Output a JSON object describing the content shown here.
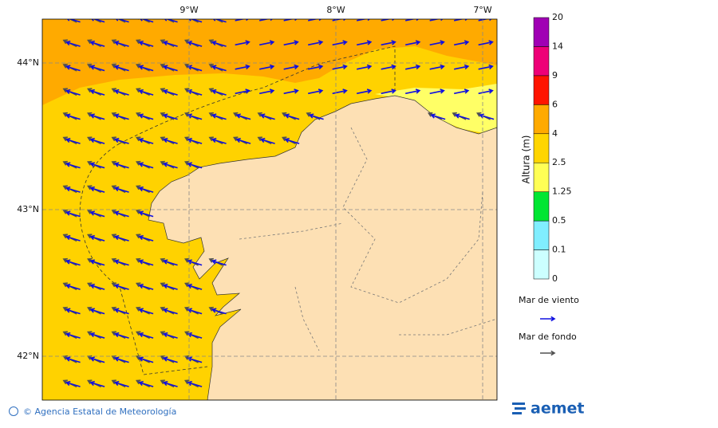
{
  "map": {
    "lon_labels": [
      "9°W",
      "8°W",
      "7°W"
    ],
    "lat_labels": [
      "44°N",
      "43°N",
      "42°N"
    ]
  },
  "colorbar": {
    "label": "Altura (m)",
    "levels": [
      0,
      0.1,
      0.5,
      1.25,
      2.5,
      4,
      6,
      9,
      14,
      20
    ],
    "colors": [
      "#ccffff",
      "#80eeff",
      "#00e632",
      "#ffff55",
      "#ffd500",
      "#ffaa00",
      "#ff1400",
      "#ee0077",
      "#a000b4"
    ]
  },
  "legend": {
    "wind_sea": {
      "label": "Mar de viento",
      "color": "#1010e0"
    },
    "swell": {
      "label": "Mar de fondo",
      "color": "#505050"
    }
  },
  "footer": {
    "credit": "© Agencia Estatal de Meteorología",
    "logo": "aemet"
  }
}
